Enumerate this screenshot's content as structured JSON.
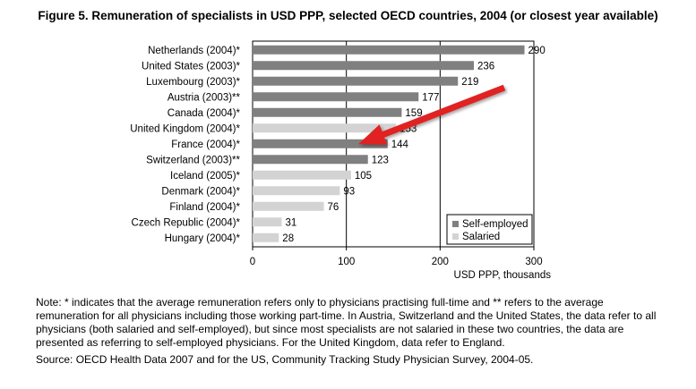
{
  "title": "Figure 5. Remuneration of specialists in USD PPP, selected OECD countries, 2004 (or closest year available)",
  "note": "Note: * indicates that the average remuneration refers only to physicians practising full-time and ** refers to the average remuneration for all physicians including those working part-time. In Austria, Switzerland and the United States, the data refer to all physicians (both salaried and self-employed), but since most specialists are not salaried in these two countries, the data are presented as referring to self-employed physicians. For the United Kingdom, data refer to England.",
  "source": "Source: OECD Health Data 2007 and for the US, Community Tracking Study Physician Survey, 2004-05.",
  "colors": {
    "self_employed": "#808080",
    "salaried": "#d3d3d3",
    "arrow": "#e02020"
  },
  "chart_data": {
    "type": "bar",
    "orientation": "horizontal",
    "xlabel": "USD PPP, thousands",
    "xlim": [
      0,
      300
    ],
    "xticks": [
      0,
      100,
      200,
      300
    ],
    "grid": "vertical lines at 100 and 200",
    "legend_position": "bottom-right",
    "legend": [
      {
        "key": "self_employed",
        "label": "Self-employed"
      },
      {
        "key": "salaried",
        "label": "Salaried"
      }
    ],
    "categories": [
      "Netherlands (2004)*",
      "United States (2003)*",
      "Luxembourg (2003)*",
      "Austria (2003)**",
      "Canada (2004)*",
      "United Kingdom (2004)*",
      "France (2004)*",
      "Switzerland (2003)**",
      "Iceland (2005)*",
      "Denmark (2004)*",
      "Finland (2004)*",
      "Czech Republic (2004)*",
      "Hungary (2004)*"
    ],
    "values": [
      290,
      236,
      219,
      177,
      159,
      153,
      144,
      123,
      105,
      93,
      76,
      31,
      28
    ],
    "types": [
      "self_employed",
      "self_employed",
      "self_employed",
      "self_employed",
      "self_employed",
      "salaried",
      "self_employed",
      "self_employed",
      "salaried",
      "salaried",
      "salaried",
      "salaried",
      "salaried"
    ],
    "annotation": {
      "shape": "red arrow",
      "points_to": "France (2004)*"
    }
  }
}
